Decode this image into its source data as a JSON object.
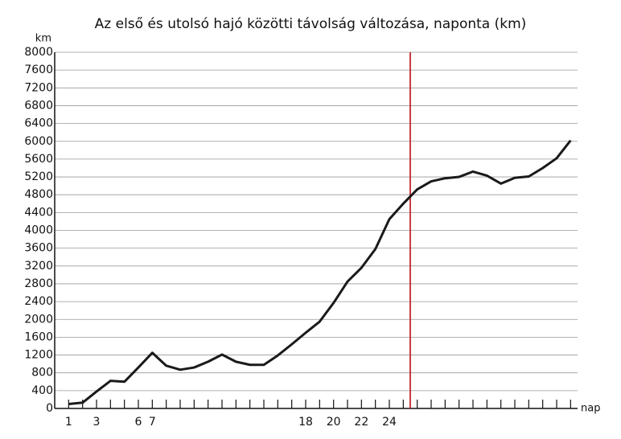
{
  "chart_data": {
    "type": "line",
    "title": "Az első és utolsó hajó közötti távolság változása, naponta (km)",
    "y_label": "km",
    "x_label": "nap",
    "x": [
      1,
      2,
      3,
      4,
      5,
      6,
      7,
      8,
      9,
      10,
      11,
      12,
      13,
      14,
      15,
      16,
      17,
      18,
      19,
      20,
      21,
      22,
      23,
      24,
      25,
      26,
      27,
      28,
      29,
      30,
      31,
      32,
      33,
      34,
      35,
      36,
      37
    ],
    "series": [
      {
        "name": "távolság",
        "color": "#1a1a1a",
        "values": [
          100,
          130,
          380,
          620,
          600,
          920,
          1250,
          960,
          870,
          920,
          1050,
          1210,
          1050,
          980,
          980,
          1190,
          1440,
          1700,
          1950,
          2370,
          2850,
          3160,
          3580,
          4250,
          4600,
          4920,
          5100,
          5170,
          5200,
          5320,
          5230,
          5050,
          5180,
          5210,
          5400,
          5620,
          6020
        ]
      }
    ],
    "xlim": [
      0,
      37.5
    ],
    "xticks": [
      1,
      3,
      6,
      7,
      18,
      20,
      22,
      24
    ],
    "ylim": [
      0,
      8000
    ],
    "yticks": [
      0,
      400,
      800,
      1200,
      1600,
      2000,
      2400,
      2800,
      3200,
      3600,
      4000,
      4400,
      4800,
      5200,
      5600,
      6000,
      6400,
      6800,
      7200,
      7600,
      8000
    ],
    "grid": true,
    "vline": {
      "x": 25.5,
      "color": "#c0272d"
    }
  }
}
